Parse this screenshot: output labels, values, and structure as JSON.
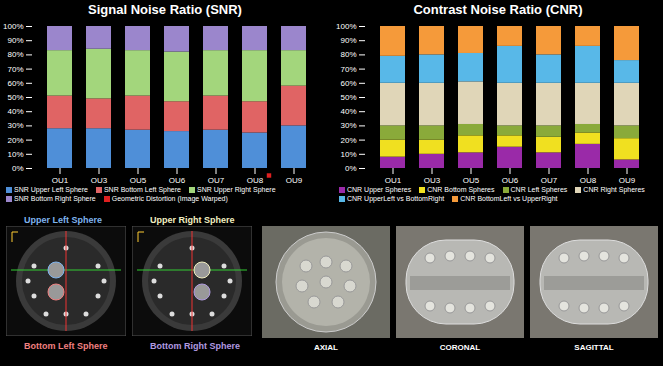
{
  "chart_data": [
    {
      "type": "bar",
      "stacked": true,
      "title": "Signal Noise Ratio (SNR)",
      "categories": [
        "OU1",
        "OU3",
        "OU5",
        "OU6",
        "OU7",
        "OU8",
        "OU9"
      ],
      "series": [
        {
          "name": "SNR Upper Left Sphere",
          "color": "#4f8fd8",
          "values": [
            28,
            28,
            27,
            26,
            27,
            25,
            30
          ]
        },
        {
          "name": "SNR Bottom Left Sphere",
          "color": "#e06464",
          "values": [
            23,
            21,
            24,
            21,
            24,
            22,
            28
          ]
        },
        {
          "name": "SNR Upper Right Sphere",
          "color": "#a3d67c",
          "values": [
            32,
            35,
            32,
            35,
            32,
            36,
            25
          ]
        },
        {
          "name": "SNR Bottom Right Sphere",
          "color": "#9b86cc",
          "values": [
            17,
            16,
            17,
            18,
            17,
            17,
            17
          ]
        },
        {
          "name": "Geometric Distortion (Image Warped)",
          "color": "#e02020",
          "type": "marker",
          "marker": "square",
          "values": [
            null,
            null,
            null,
            null,
            null,
            0,
            null
          ]
        }
      ],
      "ylim": [
        0,
        100
      ],
      "yticks": [
        {
          "value": 0,
          "label": "0%"
        },
        {
          "value": 10,
          "label": "10%"
        },
        {
          "value": 20,
          "label": "20%"
        },
        {
          "value": 30,
          "label": "30%"
        },
        {
          "value": 40,
          "label": "40%"
        },
        {
          "value": 50,
          "label": "50%"
        },
        {
          "value": 60,
          "label": "60%"
        },
        {
          "value": 70,
          "label": "70%"
        },
        {
          "value": 80,
          "label": "80%"
        },
        {
          "value": 90,
          "label": "90%"
        },
        {
          "value": 100,
          "label": "100%"
        }
      ],
      "grid": false,
      "legend": "bottom"
    },
    {
      "type": "bar",
      "stacked": true,
      "title": "Contrast Noise Ratio (CNR)",
      "categories": [
        "OU1",
        "OU3",
        "OU5",
        "OU6",
        "OU7",
        "OU8",
        "OU9"
      ],
      "series": [
        {
          "name": "CNR Upper Spheres",
          "color": "#9a2aa8",
          "values": [
            8,
            10,
            11,
            15,
            11,
            17,
            6
          ]
        },
        {
          "name": "CNR Bottom Spheres",
          "color": "#f0e020",
          "values": [
            12,
            10,
            12,
            8,
            11,
            8,
            15
          ]
        },
        {
          "name": "CNR Left Spheres",
          "color": "#8aaa3a",
          "values": [
            10,
            10,
            8,
            7,
            8,
            6,
            9
          ]
        },
        {
          "name": "CNR Right Spheres",
          "color": "#e0d6b8",
          "values": [
            30,
            30,
            30,
            30,
            30,
            29,
            30
          ]
        },
        {
          "name": "CNR UpperLeft vs BottomRight",
          "color": "#58b8e8",
          "values": [
            19,
            20,
            20,
            26,
            20,
            26,
            16
          ]
        },
        {
          "name": "CNR BottomLeft vs UpperRight",
          "color": "#f59a3a",
          "values": [
            21,
            20,
            19,
            14,
            20,
            14,
            24
          ]
        }
      ],
      "ylim": [
        0,
        100
      ],
      "yticks": [
        {
          "value": 0,
          "label": "0%"
        },
        {
          "value": 10,
          "label": "10%"
        },
        {
          "value": 20,
          "label": "20%"
        },
        {
          "value": 30,
          "label": "30%"
        },
        {
          "value": 40,
          "label": "40%"
        },
        {
          "value": 50,
          "label": "50%"
        },
        {
          "value": 60,
          "label": "60%"
        },
        {
          "value": 70,
          "label": "70%"
        },
        {
          "value": 80,
          "label": "80%"
        },
        {
          "value": 90,
          "label": "90%"
        },
        {
          "value": 100,
          "label": "100%"
        }
      ],
      "grid": false,
      "legend": "bottom"
    }
  ],
  "sphere_diagrams": [
    {
      "top_label": "Upper Left Sphere",
      "top_color": "#7fb4ee",
      "bottom_label": "Bottom Left Sphere",
      "bottom_color": "#f08080"
    },
    {
      "top_label": "Upper Right Sphere",
      "top_color": "#f2efc0",
      "bottom_label": "Bottom Right Sphere",
      "bottom_color": "#b09ae0"
    }
  ],
  "photos": [
    {
      "caption": "AXIAL"
    },
    {
      "caption": "CORONAL"
    },
    {
      "caption": "SAGITTAL"
    }
  ]
}
